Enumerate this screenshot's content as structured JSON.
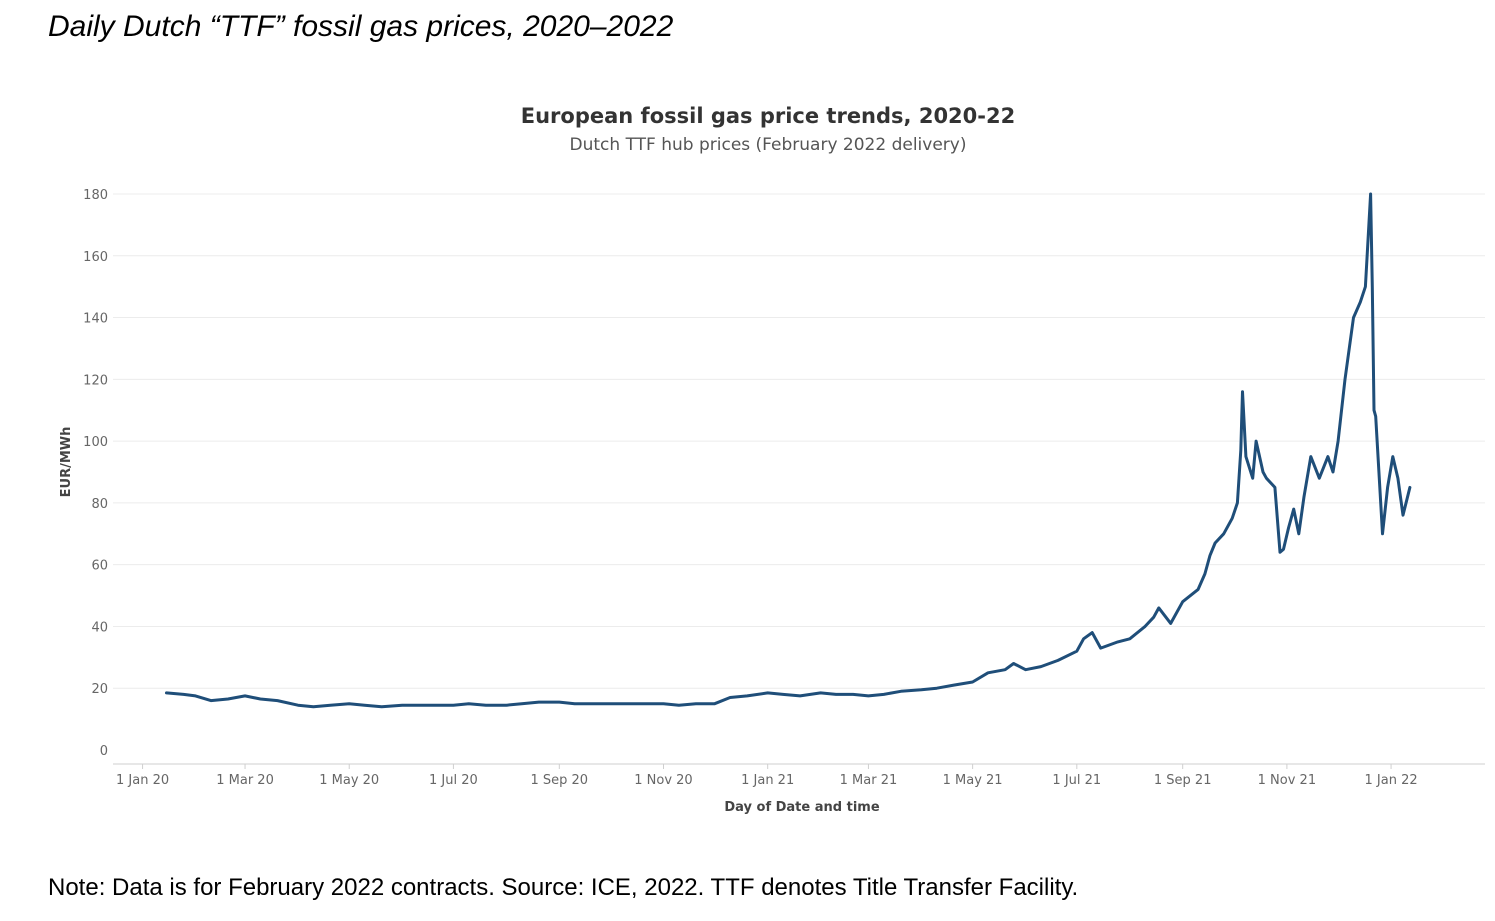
{
  "page": {
    "heading": "Daily Dutch “TTF” fossil gas prices, 2020–2022",
    "footnote": "Note: Data is for February 2022 contracts.  Source: ICE, 2022. TTF denotes Title Transfer Facility."
  },
  "chart_data": {
    "type": "line",
    "title": "European fossil gas price trends, 2020-22",
    "subtitle": "Dutch TTF hub prices (February 2022 delivery)",
    "xlabel": "Day of Date and time",
    "ylabel": "EUR/MWh",
    "ylim": [
      0,
      180
    ],
    "yticks": [
      0,
      20,
      40,
      60,
      80,
      100,
      120,
      140,
      160,
      180
    ],
    "xlim": [
      "2019-12-10",
      "2022-02-25"
    ],
    "xticks": [
      {
        "date": "2020-01-01",
        "label": "1 Jan 20"
      },
      {
        "date": "2020-03-01",
        "label": "1 Mar 20"
      },
      {
        "date": "2020-05-01",
        "label": "1 May 20"
      },
      {
        "date": "2020-07-01",
        "label": "1 Jul 20"
      },
      {
        "date": "2020-09-01",
        "label": "1 Sep 20"
      },
      {
        "date": "2020-11-01",
        "label": "1 Nov 20"
      },
      {
        "date": "2021-01-01",
        "label": "1 Jan 21"
      },
      {
        "date": "2021-03-01",
        "label": "1 Mar 21"
      },
      {
        "date": "2021-05-01",
        "label": "1 May 21"
      },
      {
        "date": "2021-07-01",
        "label": "1 Jul 21"
      },
      {
        "date": "2021-09-01",
        "label": "1 Sep 21"
      },
      {
        "date": "2021-11-01",
        "label": "1 Nov 21"
      },
      {
        "date": "2022-01-01",
        "label": "1 Jan 22"
      }
    ],
    "grid": true,
    "line_color": "#1f4e79",
    "series": [
      {
        "x": [
          "2020-01-15",
          "2020-01-25",
          "2020-02-01",
          "2020-02-10",
          "2020-02-20",
          "2020-03-01",
          "2020-03-10",
          "2020-03-20",
          "2020-04-01",
          "2020-04-10",
          "2020-04-20",
          "2020-05-01",
          "2020-05-10",
          "2020-05-20",
          "2020-06-01",
          "2020-06-10",
          "2020-06-20",
          "2020-07-01",
          "2020-07-10",
          "2020-07-20",
          "2020-08-01",
          "2020-08-10",
          "2020-08-20",
          "2020-09-01",
          "2020-09-10",
          "2020-09-20",
          "2020-10-01",
          "2020-10-10",
          "2020-10-20",
          "2020-11-01",
          "2020-11-10",
          "2020-11-20",
          "2020-12-01",
          "2020-12-10",
          "2020-12-20",
          "2021-01-01",
          "2021-01-10",
          "2021-01-20",
          "2021-02-01",
          "2021-02-10",
          "2021-02-20",
          "2021-03-01",
          "2021-03-10",
          "2021-03-20",
          "2021-04-01",
          "2021-04-10",
          "2021-04-20",
          "2021-05-01",
          "2021-05-10",
          "2021-05-20",
          "2021-05-25",
          "2021-06-01",
          "2021-06-10",
          "2021-06-20",
          "2021-07-01",
          "2021-07-05",
          "2021-07-10",
          "2021-07-15",
          "2021-07-25",
          "2021-08-01",
          "2021-08-10",
          "2021-08-15",
          "2021-08-18",
          "2021-08-25",
          "2021-09-01",
          "2021-09-10",
          "2021-09-14",
          "2021-09-17",
          "2021-09-20",
          "2021-09-25",
          "2021-09-30",
          "2021-10-03",
          "2021-10-05",
          "2021-10-06",
          "2021-10-08",
          "2021-10-12",
          "2021-10-14",
          "2021-10-18",
          "2021-10-20",
          "2021-10-25",
          "2021-10-28",
          "2021-10-30",
          "2021-11-02",
          "2021-11-05",
          "2021-11-08",
          "2021-11-11",
          "2021-11-15",
          "2021-11-20",
          "2021-11-25",
          "2021-11-28",
          "2021-12-01",
          "2021-12-05",
          "2021-12-10",
          "2021-12-14",
          "2021-12-17",
          "2021-12-20",
          "2021-12-21",
          "2021-12-22",
          "2021-12-23",
          "2021-12-27",
          "2021-12-30",
          "2022-01-02",
          "2022-01-05",
          "2022-01-08",
          "2022-01-12"
        ],
        "values": [
          18.5,
          18,
          17.5,
          16,
          16.5,
          17.5,
          16.5,
          16,
          14.5,
          14,
          14.5,
          15,
          14.5,
          14,
          14.5,
          14.5,
          14.5,
          14.5,
          15,
          14.5,
          14.5,
          15,
          15.5,
          15.5,
          15,
          15,
          15,
          15,
          15,
          15,
          14.5,
          15,
          15,
          17,
          17.5,
          18.5,
          18,
          17.5,
          18.5,
          18,
          18,
          17.5,
          18,
          19,
          19.5,
          20,
          21,
          22,
          25,
          26,
          28,
          26,
          27,
          29,
          32,
          36,
          38,
          33,
          35,
          36,
          40,
          43,
          46,
          41,
          48,
          52,
          57,
          63,
          67,
          70,
          75,
          80,
          97,
          116,
          95,
          88,
          100,
          90,
          88,
          85,
          64,
          65,
          72,
          78,
          70,
          82,
          95,
          88,
          95,
          90,
          100,
          120,
          140,
          145,
          150,
          180,
          150,
          110,
          108,
          70,
          85,
          95,
          88,
          76,
          85
        ]
      }
    ]
  }
}
